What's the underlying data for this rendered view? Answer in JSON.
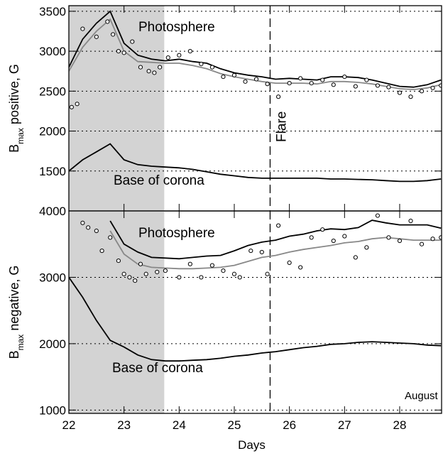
{
  "chart_data": [
    {
      "type": "line",
      "ylabel": [
        "B",
        "max",
        " positive, G"
      ],
      "annotations": [
        "Photosphere",
        "Base of corona",
        "Flare"
      ],
      "xlim": [
        22,
        28.76
      ],
      "xticks": [
        22,
        23,
        24,
        25,
        26,
        27,
        28
      ],
      "ylim": [
        1000,
        3570
      ],
      "yticks": [
        1500,
        2000,
        2500,
        3000,
        3500
      ],
      "grid": true,
      "shade": [
        22,
        23.73
      ],
      "vline": 25.65,
      "x": [
        22,
        22.25,
        22.5,
        22.75,
        23,
        23.25,
        23.5,
        23.75,
        24,
        24.25,
        24.5,
        24.75,
        25,
        25.25,
        25.5,
        25.75,
        26,
        26.25,
        26.5,
        26.75,
        27,
        27.25,
        27.5,
        27.75,
        28,
        28.25,
        28.5,
        28.75
      ],
      "series": [
        {
          "color": "#000000",
          "values": [
            2800,
            3150,
            3350,
            3500,
            3100,
            2950,
            2900,
            2880,
            2900,
            2870,
            2850,
            2780,
            2730,
            2700,
            2680,
            2650,
            2660,
            2650,
            2640,
            2680,
            2680,
            2670,
            2640,
            2600,
            2560,
            2550,
            2580,
            2640
          ]
        },
        {
          "color": "#888888",
          "values": [
            2750,
            3050,
            3250,
            3400,
            3000,
            2870,
            2860,
            2850,
            2850,
            2820,
            2780,
            2720,
            2680,
            2650,
            2620,
            2600,
            2600,
            2600,
            2590,
            2620,
            2620,
            2610,
            2590,
            2560,
            2530,
            2520,
            2540,
            2580
          ]
        },
        {
          "color": "#000000",
          "values": [
            1500,
            1640,
            1740,
            1840,
            1640,
            1580,
            1560,
            1550,
            1540,
            1520,
            1490,
            1460,
            1440,
            1420,
            1410,
            1410,
            1410,
            1410,
            1410,
            1400,
            1400,
            1395,
            1390,
            1380,
            1370,
            1370,
            1380,
            1400
          ]
        }
      ],
      "points": {
        "x": [
          22.05,
          22.15,
          22.25,
          22.5,
          22.7,
          22.8,
          22.9,
          23.0,
          23.15,
          23.3,
          23.45,
          23.55,
          23.65,
          23.8,
          24.0,
          24.2,
          24.4,
          24.6,
          24.8,
          25.0,
          25.2,
          25.4,
          25.6,
          25.8,
          26.0,
          26.2,
          26.4,
          26.6,
          26.8,
          27.0,
          27.2,
          27.4,
          27.6,
          27.8,
          28.0,
          28.2,
          28.4,
          28.6,
          28.75
        ],
        "values": [
          2300,
          2340,
          3280,
          3180,
          3370,
          3210,
          3000,
          2980,
          3120,
          2800,
          2750,
          2730,
          2800,
          2920,
          2950,
          3000,
          2840,
          2800,
          2680,
          2700,
          2620,
          2650,
          2590,
          2430,
          2600,
          2660,
          2600,
          2640,
          2580,
          2680,
          2560,
          2640,
          2570,
          2550,
          2480,
          2430,
          2500,
          2540,
          2570
        ]
      }
    },
    {
      "type": "line",
      "ylabel": [
        "B",
        "max",
        " negative, G"
      ],
      "xlabel": "Days",
      "annotations": [
        "Photosphere",
        "Base of corona",
        "August"
      ],
      "xlim": [
        22,
        28.76
      ],
      "xticks": [
        22,
        23,
        24,
        25,
        26,
        27,
        28
      ],
      "ylim": [
        950,
        4000
      ],
      "yticks": [
        1000,
        2000,
        3000,
        4000
      ],
      "grid": true,
      "shade": [
        22,
        23.73
      ],
      "vline": 25.65,
      "x": [
        22,
        22.25,
        22.5,
        22.75,
        23,
        23.25,
        23.5,
        23.75,
        24,
        24.25,
        24.5,
        24.75,
        25,
        25.25,
        25.5,
        25.75,
        26,
        26.25,
        26.5,
        26.75,
        27,
        27.25,
        27.5,
        27.75,
        28,
        28.25,
        28.5,
        28.75
      ],
      "series": [
        {
          "color": "#000000",
          "values": [
            null,
            null,
            null,
            3850,
            3500,
            3380,
            3300,
            3290,
            3280,
            3300,
            3320,
            3330,
            3400,
            3480,
            3530,
            3560,
            3620,
            3650,
            3700,
            3730,
            3720,
            3750,
            3860,
            3820,
            3790,
            3790,
            3790,
            3740
          ]
        },
        {
          "color": "#888888",
          "values": [
            null,
            null,
            null,
            3700,
            3350,
            3200,
            3150,
            3140,
            3130,
            3130,
            3140,
            3150,
            3180,
            3240,
            3300,
            3330,
            3380,
            3420,
            3450,
            3480,
            3520,
            3540,
            3580,
            3600,
            3580,
            3560,
            3560,
            3560
          ]
        },
        {
          "color": "#000000",
          "values": [
            3000,
            2700,
            2350,
            2050,
            1950,
            1830,
            1760,
            1740,
            1740,
            1750,
            1760,
            1780,
            1810,
            1830,
            1860,
            1880,
            1910,
            1940,
            1960,
            1990,
            2000,
            2020,
            2030,
            2020,
            2010,
            2000,
            1980,
            1970
          ]
        }
      ],
      "points": {
        "x": [
          22.25,
          22.35,
          22.5,
          22.6,
          22.75,
          22.9,
          23.0,
          23.1,
          23.2,
          23.3,
          23.4,
          23.6,
          23.75,
          24.0,
          24.2,
          24.4,
          24.6,
          24.8,
          25.0,
          25.1,
          25.3,
          25.5,
          25.6,
          25.8,
          26.0,
          26.2,
          26.4,
          26.6,
          26.8,
          27.0,
          27.2,
          27.4,
          27.6,
          27.8,
          28.0,
          28.2,
          28.4,
          28.6,
          28.75
        ],
        "values": [
          3820,
          3750,
          3700,
          3400,
          3600,
          3250,
          3050,
          3000,
          2950,
          3200,
          3050,
          3080,
          3100,
          3000,
          3200,
          3000,
          3180,
          3100,
          3050,
          3000,
          3400,
          3380,
          3050,
          3780,
          3220,
          3150,
          3600,
          3720,
          3550,
          3620,
          3300,
          3450,
          3930,
          3600,
          3550,
          3850,
          3500,
          3580,
          3600
        ]
      }
    }
  ]
}
